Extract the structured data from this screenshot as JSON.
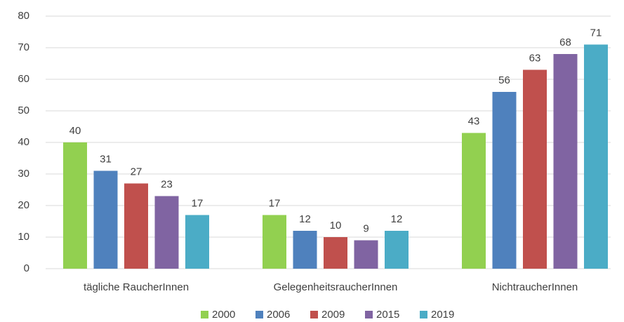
{
  "chart_data": {
    "type": "bar",
    "categories": [
      "tägliche RaucherInnen",
      "GelegenheitsraucherInnen",
      "NichtraucherInnen"
    ],
    "series": [
      {
        "name": "2000",
        "color": "#92d050",
        "values": [
          40,
          17,
          43
        ]
      },
      {
        "name": "2006",
        "color": "#4f81bd",
        "values": [
          31,
          12,
          56
        ]
      },
      {
        "name": "2009",
        "color": "#c0504d",
        "values": [
          27,
          10,
          63
        ]
      },
      {
        "name": "2015",
        "color": "#8064a2",
        "values": [
          23,
          9,
          68
        ]
      },
      {
        "name": "2019",
        "color": "#4bacc6",
        "values": [
          17,
          12,
          71
        ]
      }
    ],
    "ylim": [
      0,
      80
    ],
    "yticks": [
      0,
      10,
      20,
      30,
      40,
      50,
      60,
      70,
      80
    ],
    "grid": true,
    "legend": "bottom"
  }
}
